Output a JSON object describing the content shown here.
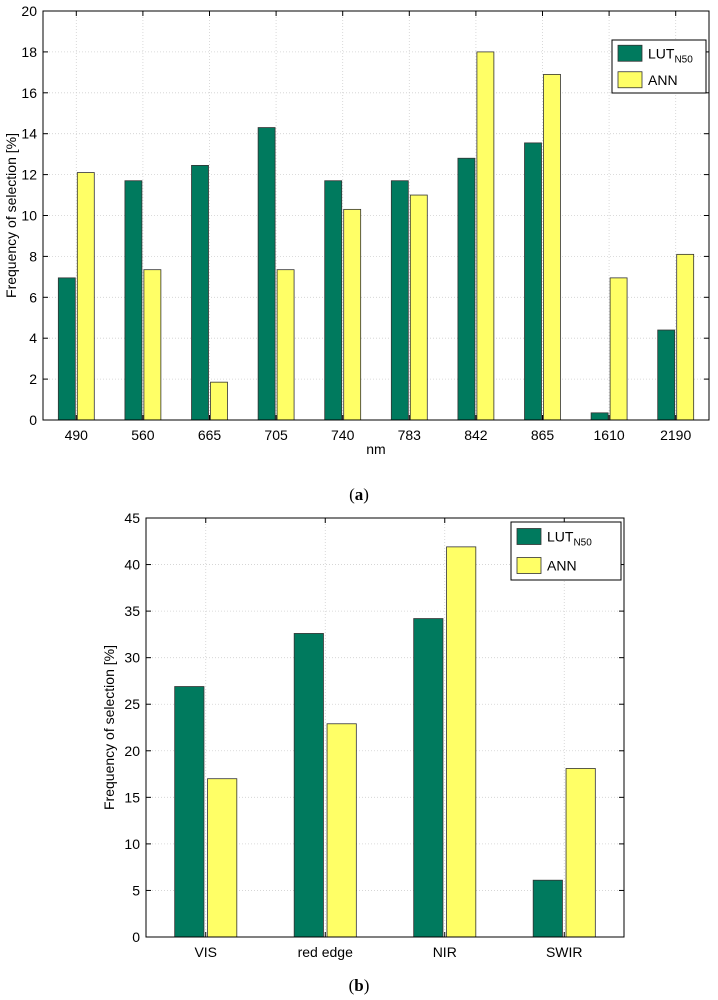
{
  "chart_data": [
    {
      "type": "bar",
      "panel": "(a)",
      "caption": {
        "open": "(",
        "letter": "a",
        "close": ")"
      },
      "categories": [
        "490",
        "560",
        "665",
        "705",
        "740",
        "783",
        "842",
        "865",
        "1610",
        "2190"
      ],
      "series": [
        {
          "name": "LUT",
          "subscript": "N50",
          "color": "#007a5e",
          "values": [
            6.95,
            11.7,
            12.45,
            14.3,
            11.7,
            11.7,
            12.8,
            13.55,
            0.35,
            4.4
          ]
        },
        {
          "name": "ANN",
          "subscript": "",
          "color": "#ffff66",
          "values": [
            12.1,
            7.35,
            1.85,
            7.35,
            10.3,
            11.0,
            18.0,
            16.9,
            6.95,
            8.1
          ]
        }
      ],
      "xlabel": "nm",
      "ylabel": "Frequency of selection [%]",
      "ylim": [
        0,
        20
      ],
      "yticks": [
        "0",
        "2",
        "4",
        "6",
        "8",
        "10",
        "12",
        "14",
        "16",
        "18",
        "20"
      ],
      "grid": true,
      "legend_position": "top-right"
    },
    {
      "type": "bar",
      "panel": "(b)",
      "caption": {
        "open": "(",
        "letter": "b",
        "close": ")"
      },
      "categories": [
        "VIS",
        "red edge",
        "NIR",
        "SWIR"
      ],
      "series": [
        {
          "name": "LUT",
          "subscript": "N50",
          "color": "#007a5e",
          "values": [
            26.9,
            32.6,
            34.2,
            6.1
          ]
        },
        {
          "name": "ANN",
          "subscript": "",
          "color": "#ffff66",
          "values": [
            17.0,
            22.9,
            41.9,
            18.1
          ]
        }
      ],
      "xlabel": "",
      "ylabel": "Frequency of selection [%]",
      "ylim": [
        0,
        45
      ],
      "yticks": [
        "0",
        "5",
        "10",
        "15",
        "20",
        "25",
        "30",
        "35",
        "40",
        "45"
      ],
      "grid": true,
      "legend_position": "top-right"
    }
  ]
}
